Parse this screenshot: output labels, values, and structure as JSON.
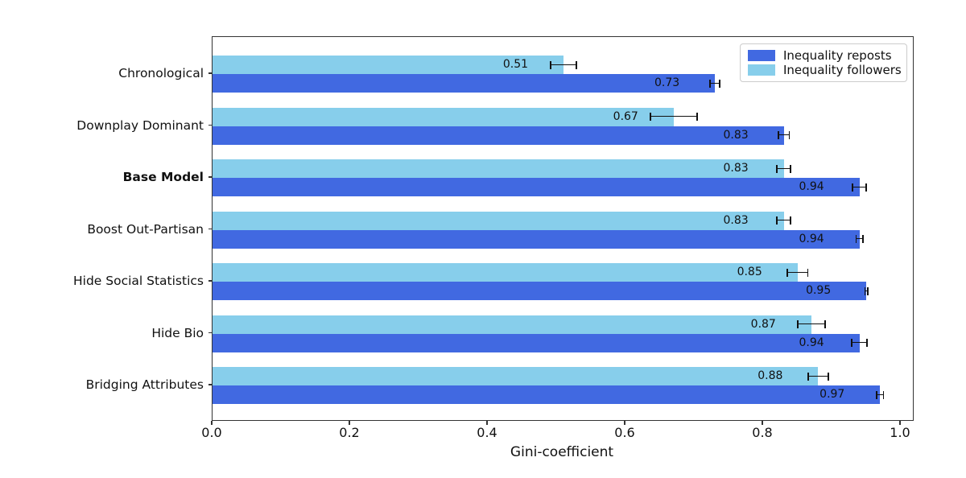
{
  "chart_data": {
    "type": "bar",
    "orientation": "horizontal",
    "title": "",
    "xlabel": "Gini-coefficient",
    "ylabel": "",
    "categories": [
      "Chronological",
      "Downplay Dominant",
      "Base Model",
      "Boost Out-Partisan",
      "Hide Social Statistics",
      "Hide Bio",
      "Bridging Attributes"
    ],
    "emphasized_category": "Base Model",
    "series": [
      {
        "name": "Inequality reposts",
        "color": "#4169E1",
        "values": [
          0.73,
          0.83,
          0.94,
          0.94,
          0.95,
          0.94,
          0.97
        ],
        "errors": [
          0.008,
          0.009,
          0.011,
          0.006,
          0.003,
          0.012,
          0.006
        ]
      },
      {
        "name": "Inequality followers",
        "color": "#87CEEB",
        "values": [
          0.51,
          0.67,
          0.83,
          0.83,
          0.85,
          0.87,
          0.88
        ],
        "errors": [
          0.02,
          0.035,
          0.011,
          0.011,
          0.016,
          0.021,
          0.016
        ]
      }
    ],
    "row_order_top_to_bottom": [
      "Inequality followers",
      "Inequality reposts"
    ],
    "bar_value_labels": [
      "0.73",
      "0.83",
      "0.94",
      "0.94",
      "0.95",
      "0.94",
      "0.97",
      "0.51",
      "0.67",
      "0.83",
      "0.83",
      "0.85",
      "0.87",
      "0.88"
    ],
    "value_label_decimals": 2,
    "error_bars": true,
    "grid": false,
    "xlim": [
      0.0,
      1.02
    ],
    "xticks": {
      "values": [
        0.0,
        0.2,
        0.4,
        0.6,
        0.8,
        1.0
      ],
      "labels": [
        "0.0",
        "0.2",
        "0.4",
        "0.6",
        "0.8",
        "1.0"
      ]
    },
    "legend": {
      "position": "upper right",
      "entries": [
        "Inequality reposts",
        "Inequality followers"
      ]
    },
    "colors": {
      "axis": "#333333",
      "text": "#111111",
      "error_bar": "#111111",
      "background": "#ffffff"
    }
  }
}
